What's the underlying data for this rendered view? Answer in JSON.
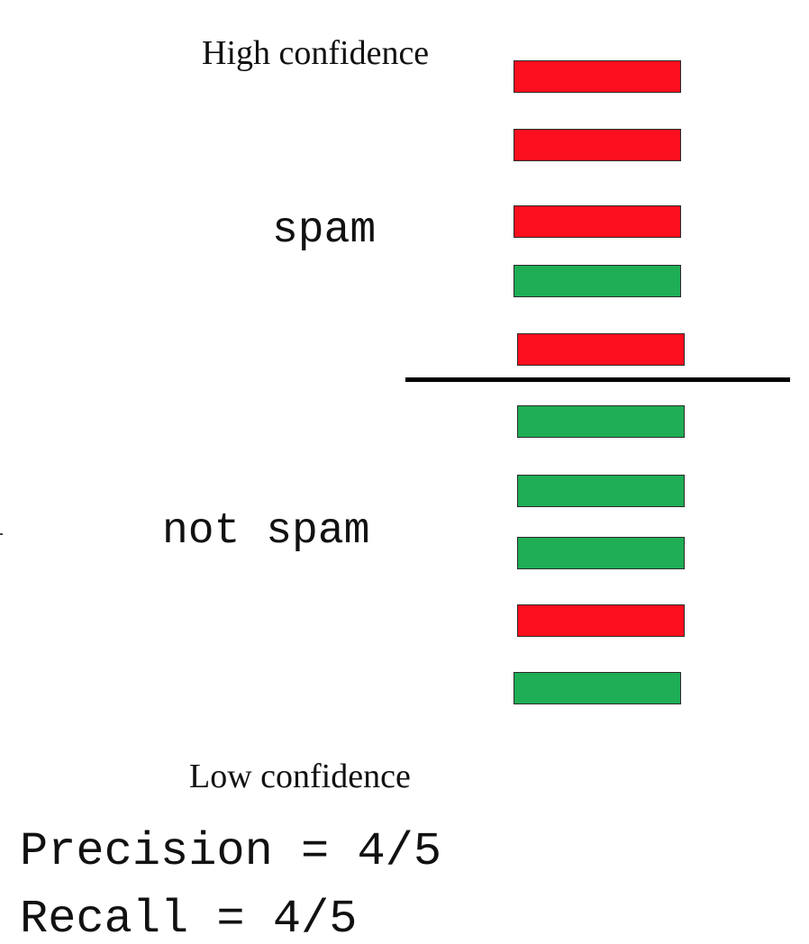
{
  "labels": {
    "high_confidence": "High confidence",
    "low_confidence": "Low confidence",
    "spam": "spam",
    "not_spam": "not spam"
  },
  "metrics": {
    "precision": "Precision = 4/5",
    "recall": "Recall = 4/5"
  },
  "colors": {
    "spam_red": "#fb0f1e",
    "not_spam_green": "#1fae56",
    "threshold_line": "#000000",
    "bar_border": "#2b2b2b"
  },
  "ranked_emails": [
    {
      "true_class": "spam"
    },
    {
      "true_class": "spam"
    },
    {
      "true_class": "spam"
    },
    {
      "true_class": "not spam"
    },
    {
      "true_class": "spam"
    },
    {
      "true_class": "not spam"
    },
    {
      "true_class": "not spam"
    },
    {
      "true_class": "not spam"
    },
    {
      "true_class": "spam"
    },
    {
      "true_class": "not spam"
    }
  ],
  "predicted_spam_count": 5
}
